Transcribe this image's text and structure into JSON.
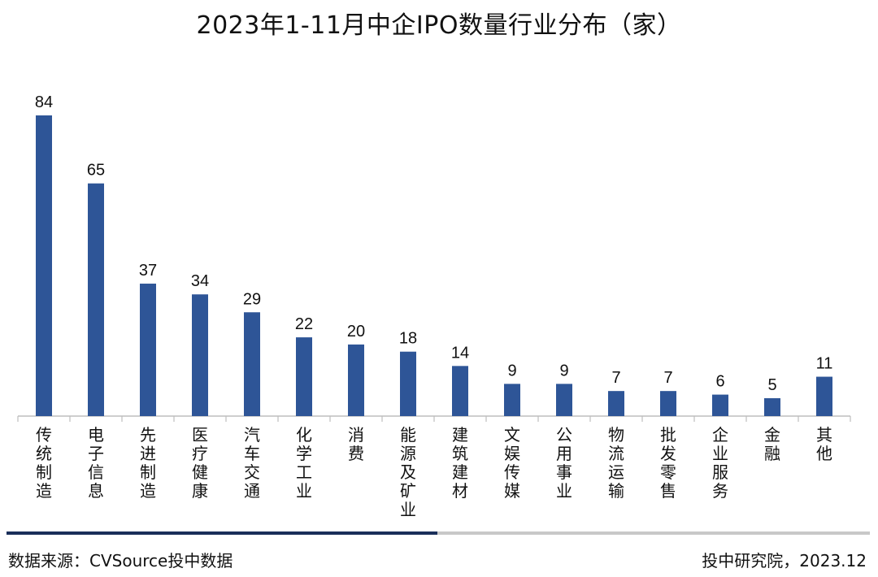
{
  "title": "2023年1-11月中企IPO数量行业分布（家）",
  "chart_data": {
    "type": "bar",
    "title": "2023年1-11月中企IPO数量行业分布（家）",
    "categories": [
      "传统制造",
      "电子信息",
      "先进制造",
      "医疗健康",
      "汽车交通",
      "化学工业",
      "消费",
      "能源及矿业",
      "建筑建材",
      "文娱传媒",
      "公用事业",
      "物流运输",
      "批发零售",
      "企业服务",
      "金融",
      "其他"
    ],
    "values": [
      84,
      65,
      37,
      34,
      29,
      22,
      20,
      18,
      14,
      9,
      9,
      7,
      7,
      6,
      5,
      11
    ],
    "xlabel": "",
    "ylabel": "",
    "ylim": [
      0,
      84
    ],
    "grid": false,
    "legend": "none",
    "bar_color": "#2e5597"
  },
  "footer": {
    "source": "数据来源：CVSource投中数据",
    "credit": "投中研究院，2023.12"
  }
}
